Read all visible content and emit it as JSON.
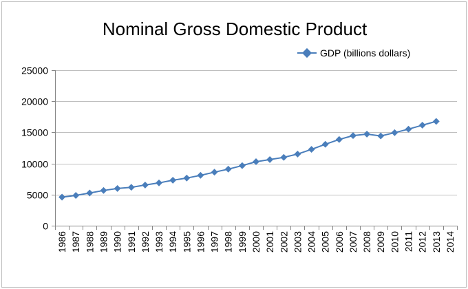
{
  "chart_data": {
    "type": "line",
    "title": "Nominal Gross Domestic Product",
    "xlabel": "",
    "ylabel": "",
    "categories": [
      "1986",
      "1987",
      "1988",
      "1989",
      "1990",
      "1991",
      "1992",
      "1993",
      "1994",
      "1995",
      "1996",
      "1997",
      "1998",
      "1999",
      "2000",
      "2001",
      "2002",
      "2003",
      "2004",
      "2005",
      "2006",
      "2007",
      "2008",
      "2009",
      "2010",
      "2011",
      "2012",
      "2013",
      "2014"
    ],
    "series": [
      {
        "name": "GDP (billions dollars)",
        "color": "#4a7ebb",
        "values": [
          4590,
          4870,
          5250,
          5660,
          5980,
          6170,
          6540,
          6880,
          7310,
          7660,
          8100,
          8610,
          9090,
          9660,
          10290,
          10630,
          10980,
          11510,
          12270,
          13090,
          13860,
          14480,
          14720,
          14420,
          14960,
          15520,
          16160,
          16770,
          null
        ]
      }
    ],
    "ylim": [
      0,
      25000
    ],
    "yticks": [
      0,
      5000,
      10000,
      15000,
      20000,
      25000
    ],
    "grid": true,
    "legend_position": "top-right"
  }
}
